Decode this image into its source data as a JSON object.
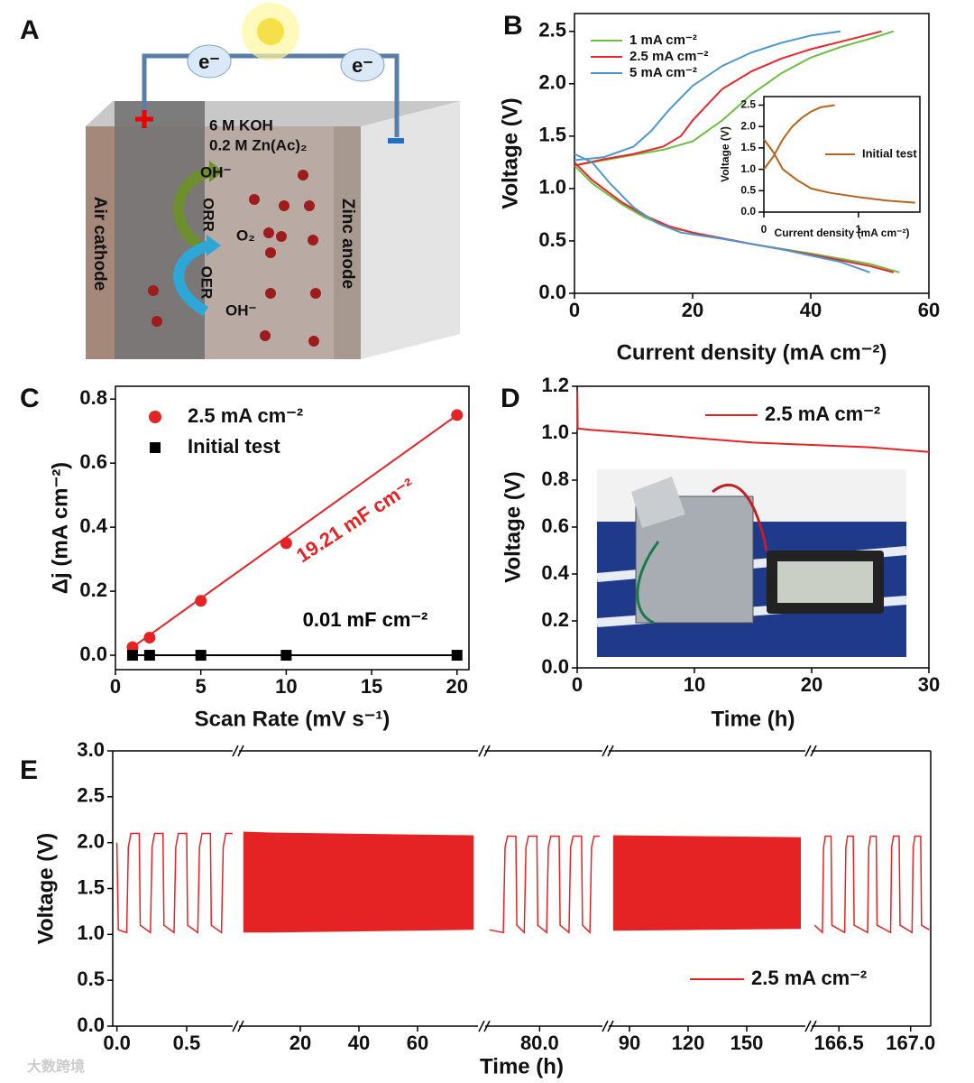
{
  "diagram": {
    "label": "A",
    "electrons": [
      "e⁻",
      "e⁻"
    ],
    "electrolyte": [
      "6 M KOH",
      "0.2 M Zn(Ac)₂"
    ],
    "species": [
      "OH⁻",
      "O₂",
      "OH⁻"
    ],
    "reactions": [
      "ORR",
      "OER"
    ],
    "electrodes": [
      "Air cathode",
      "Zinc anode"
    ]
  },
  "watermark": "大数跨境",
  "chart_data": [
    {
      "type": "line",
      "panel": "B",
      "xlabel": "Current density (mA cm⁻²)",
      "ylabel": "Voltage (V)",
      "xlim": [
        0,
        60
      ],
      "xticks": [
        0,
        20,
        40,
        60
      ],
      "ylim": [
        0,
        2.67
      ],
      "yticks": [
        {
          "value": 0,
          "label": "0.0"
        },
        0.5,
        {
          "value": 1,
          "label": "1.0"
        },
        1.5,
        {
          "value": 2,
          "label": "2.0"
        },
        2.5
      ],
      "legend": "top-left",
      "series": [
        {
          "name": "1 mA cm⁻²",
          "color": "#6abf3f",
          "x": [
            0,
            5,
            10,
            15,
            20,
            25,
            30,
            35,
            40,
            45,
            50,
            54,
            null,
            0,
            3,
            8,
            12,
            16,
            20,
            30,
            40,
            50,
            55
          ],
          "values": [
            1.22,
            1.27,
            1.32,
            1.37,
            1.45,
            1.65,
            1.9,
            2.1,
            2.25,
            2.35,
            2.43,
            2.5,
            null,
            1.22,
            1.05,
            0.85,
            0.72,
            0.63,
            0.58,
            0.47,
            0.38,
            0.28,
            0.2
          ]
        },
        {
          "name": "2.5 mA cm⁻²",
          "color": "#e8262b",
          "x": [
            0,
            5,
            10,
            15,
            18,
            20,
            25,
            30,
            35,
            40,
            45,
            52,
            null,
            0,
            3,
            8,
            12,
            16,
            20,
            30,
            40,
            50,
            54
          ],
          "values": [
            1.22,
            1.28,
            1.33,
            1.4,
            1.5,
            1.65,
            1.95,
            2.12,
            2.24,
            2.33,
            2.4,
            2.5,
            null,
            1.25,
            1.08,
            0.87,
            0.74,
            0.64,
            0.58,
            0.47,
            0.37,
            0.26,
            0.2
          ]
        },
        {
          "name": "5 mA cm⁻²",
          "color": "#4c97cf",
          "x": [
            0,
            5,
            10,
            13,
            16,
            20,
            25,
            30,
            35,
            40,
            45,
            null,
            0,
            3,
            6,
            10,
            14,
            18,
            25,
            35,
            45,
            50
          ],
          "values": [
            1.27,
            1.3,
            1.4,
            1.55,
            1.75,
            1.98,
            2.17,
            2.3,
            2.39,
            2.46,
            2.5,
            null,
            1.33,
            1.25,
            1.05,
            0.82,
            0.67,
            0.58,
            0.52,
            0.42,
            0.3,
            0.2
          ]
        }
      ]
    },
    {
      "type": "line",
      "xlabel": "Current density (mA cm⁻²)",
      "ylabel": "Voltage (V)",
      "xlim": [
        0,
        1.65
      ],
      "xticks": [
        0,
        1
      ],
      "ylim": [
        0,
        2.7
      ],
      "yticks": [
        {
          "value": 0,
          "label": "0.0"
        },
        0.5,
        {
          "value": 1,
          "label": "1.0"
        },
        1.5,
        {
          "value": 2,
          "label": "2.0"
        },
        2.5
      ],
      "legend": "right",
      "series": [
        {
          "name": "Initial test",
          "color": "#b5651d",
          "x": [
            0,
            0.1,
            0.2,
            0.3,
            0.4,
            0.5,
            0.6,
            0.75,
            null,
            0,
            0.1,
            0.2,
            0.35,
            0.5,
            0.7,
            1.0,
            1.3,
            1.6
          ],
          "values": [
            1.0,
            1.3,
            1.7,
            2.0,
            2.2,
            2.35,
            2.45,
            2.5,
            null,
            1.7,
            1.4,
            1.0,
            0.75,
            0.55,
            0.45,
            0.35,
            0.27,
            0.22
          ]
        }
      ]
    },
    {
      "type": "scatter",
      "panel": "C",
      "xlabel": "Scan Rate (mV s⁻¹)",
      "ylabel": "Δj (mA cm⁻²)",
      "xlim": [
        0,
        20.7
      ],
      "xticks": [
        0,
        5,
        10,
        15,
        20
      ],
      "ylim": [
        -0.045,
        0.84
      ],
      "yticks": [
        {
          "value": 0,
          "label": "0.0"
        },
        0.2,
        0.4,
        0.6,
        0.8
      ],
      "legend": "top-left",
      "fit_line": true,
      "series": [
        {
          "name": "2.5 mA cm⁻²",
          "color": "#e62324",
          "marker": "circle",
          "x": [
            1,
            2,
            5,
            10,
            20
          ],
          "values": [
            0.025,
            0.055,
            0.17,
            0.35,
            0.75
          ]
        },
        {
          "name": "Initial test",
          "color": "#000000",
          "marker": "square",
          "x": [
            1,
            2,
            5,
            10,
            20
          ],
          "values": [
            0,
            0,
            0,
            0,
            0
          ]
        }
      ],
      "annotations": [
        {
          "text": "19.21 mF cm⁻²",
          "color": "#e62324"
        },
        {
          "text": "0.01 mF cm⁻²",
          "color": "#000000"
        }
      ]
    },
    {
      "type": "line",
      "panel": "D",
      "xlabel": "Time (h)",
      "ylabel": "Voltage (V)",
      "xlim": [
        0,
        30
      ],
      "xticks": [
        0,
        10,
        20,
        30
      ],
      "ylim": [
        0,
        1.2
      ],
      "yticks": [
        {
          "value": 0,
          "label": "0.0"
        },
        0.2,
        0.4,
        0.6,
        0.8,
        {
          "value": 1,
          "label": "1.0"
        },
        1.2
      ],
      "legend": "top-right",
      "series": [
        {
          "name": "2.5 mA cm⁻²",
          "color": "#e62324",
          "x": [
            0,
            0.05,
            1,
            5,
            10,
            15,
            20,
            25,
            30
          ],
          "values": [
            1.18,
            1.02,
            1.015,
            1.0,
            0.98,
            0.96,
            0.95,
            0.94,
            0.92
          ]
        }
      ]
    },
    {
      "type": "broken-line",
      "panel": "E",
      "xlabel": "Time (h)",
      "ylabel": "Voltage (V)",
      "ylim": [
        0,
        3
      ],
      "yticks": [
        {
          "value": 0,
          "label": "0.0"
        },
        0.5,
        {
          "value": 1,
          "label": "1.0"
        },
        1.5,
        {
          "value": 2,
          "label": "2.0"
        },
        2.5,
        {
          "value": 3,
          "label": "3.0"
        }
      ],
      "legend": "bottom-right",
      "series": [
        {
          "name": "2.5 mA cm⁻²",
          "color": "#e62324"
        }
      ],
      "segments": [
        {
          "xlim": [
            -0.03,
            0.83
          ],
          "xticks": [
            {
              "value": 0,
              "label": "0.0"
            },
            0.5
          ],
          "x": [
            0,
            0.01,
            0.07,
            0.082,
            0.1,
            0.16,
            0.167,
            0.24,
            0.252,
            0.27,
            0.33,
            0.337,
            0.41,
            0.422,
            0.44,
            0.5,
            0.507,
            0.58,
            0.592,
            0.61,
            0.67,
            0.677,
            0.75,
            0.762,
            0.78,
            0.83
          ],
          "values": [
            2.0,
            1.05,
            1.02,
            1.95,
            2.1,
            2.1,
            1.1,
            1.02,
            1.95,
            2.1,
            2.1,
            1.1,
            1.02,
            1.95,
            2.1,
            2.1,
            1.1,
            1.02,
            1.95,
            2.1,
            2.1,
            1.1,
            1.02,
            1.95,
            2.1,
            2.1
          ]
        },
        {
          "xlim": [
            -0.9,
            80.6
          ],
          "xticks": [
            20,
            40,
            60
          ],
          "x": [
            0.6,
            10,
            79.1
          ],
          "high": [
            2.12,
            2.11,
            2.08
          ],
          "low": [
            1.02,
            1.02,
            1.05
          ]
        },
        {
          "xlim": [
            79.61,
            80.45
          ],
          "xticks": [
            {
              "value": 80,
              "label": "80.0"
            }
          ],
          "x": [
            79.64,
            79.74,
            79.752,
            79.77,
            79.83,
            79.837,
            79.89,
            79.902,
            79.92,
            79.98,
            79.987,
            80.05,
            80.062,
            80.08,
            80.14,
            80.147,
            80.21,
            80.222,
            80.24,
            80.3,
            80.307,
            80.36,
            80.372,
            80.39,
            80.43
          ],
          "values": [
            1.05,
            1.02,
            1.95,
            2.07,
            2.07,
            1.1,
            1.02,
            1.95,
            2.07,
            2.07,
            1.1,
            1.02,
            1.95,
            2.07,
            2.07,
            1.1,
            1.02,
            1.95,
            2.07,
            2.07,
            1.1,
            1.02,
            1.95,
            2.07,
            2.07
          ]
        },
        {
          "xlim": [
            79.4,
            180
          ],
          "xticks": [
            90,
            120,
            150
          ],
          "x": [
            81.7,
            177.7
          ],
          "high": [
            2.08,
            2.06
          ],
          "low": [
            1.04,
            1.06
          ]
        },
        {
          "xlim": [
            166.31,
            167.14
          ],
          "xticks": [
            166.5,
            {
              "value": 167,
              "label": "167.0"
            }
          ],
          "x": [
            166.33,
            166.385,
            166.393,
            166.405,
            166.445,
            166.451,
            166.54,
            166.548,
            166.56,
            166.6,
            166.606,
            166.7,
            166.708,
            166.72,
            166.76,
            166.766,
            166.86,
            166.868,
            166.88,
            166.92,
            166.926,
            167.01,
            167.018,
            167.03,
            167.07,
            167.076,
            167.13
          ],
          "values": [
            1.1,
            1.02,
            1.95,
            2.07,
            2.07,
            1.1,
            1.02,
            1.95,
            2.07,
            2.07,
            1.1,
            1.02,
            1.95,
            2.07,
            2.07,
            1.1,
            1.02,
            1.95,
            2.07,
            2.07,
            1.1,
            1.02,
            1.95,
            2.07,
            2.07,
            1.1,
            1.05
          ]
        }
      ]
    }
  ]
}
